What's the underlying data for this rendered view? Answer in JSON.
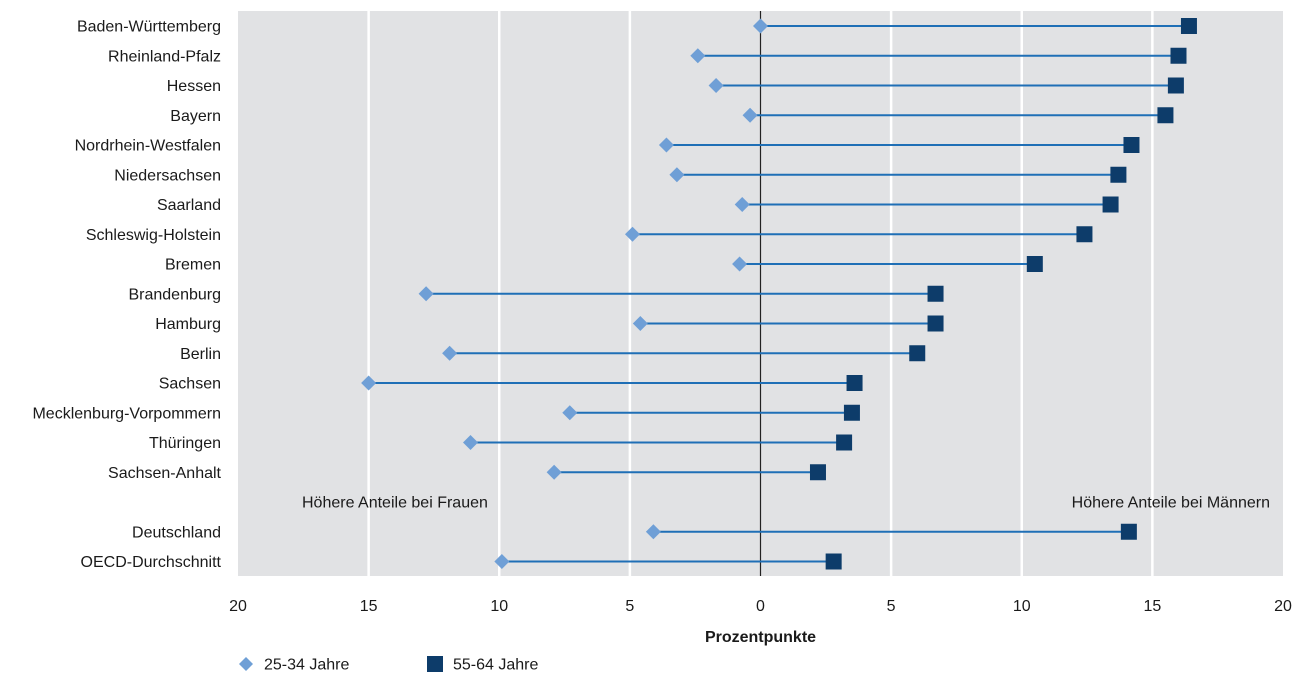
{
  "colors": {
    "plot_background": "#e1e2e4",
    "gridline": "#ffffff",
    "zero_line": "#222222",
    "connector_line": "#1f6fb6",
    "series_25_34": "#6f9fd6",
    "series_55_64": "#0d3c6a"
  },
  "chart_data": {
    "type": "dumbbell",
    "xlabel": "Prozentpunkte",
    "xlim": [
      -20,
      20
    ],
    "x_ticks": [
      -20,
      -15,
      -10,
      -5,
      0,
      5,
      10,
      15,
      20
    ],
    "x_tick_labels": [
      "20",
      "15",
      "10",
      "5",
      "0",
      "5",
      "10",
      "15",
      "20"
    ],
    "grid": true,
    "legend_position": "bottom-left",
    "annotations": {
      "left": "Höhere Anteile bei Frauen",
      "right": "Höhere Anteile bei Männern"
    },
    "categories": [
      "Baden-Württemberg",
      "Rheinland-Pfalz",
      "Hessen",
      "Bayern",
      "Nordrhein-Westfalen",
      "Niedersachsen",
      "Saarland",
      "Schleswig-Holstein",
      "Bremen",
      "Brandenburg",
      "Hamburg",
      "Berlin",
      "Sachsen",
      "Mecklenburg-Vorpommern",
      "Thüringen",
      "Sachsen-Anhalt",
      "Deutschland",
      "OECD-Durchschnitt"
    ],
    "series": [
      {
        "name": "25-34 Jahre",
        "marker": "diamond",
        "values": [
          0.0,
          -2.4,
          -1.7,
          -0.4,
          -3.6,
          -3.2,
          -0.7,
          -4.9,
          -0.8,
          -12.8,
          -4.6,
          -11.9,
          -15.0,
          -7.3,
          -11.1,
          -7.9,
          -4.1,
          -9.9
        ]
      },
      {
        "name": "55-64 Jahre",
        "marker": "square",
        "values": [
          16.4,
          16.0,
          15.9,
          15.5,
          14.2,
          13.7,
          13.4,
          12.4,
          10.5,
          6.7,
          6.7,
          6.0,
          3.6,
          3.5,
          3.2,
          2.2,
          14.1,
          2.8
        ]
      }
    ]
  }
}
